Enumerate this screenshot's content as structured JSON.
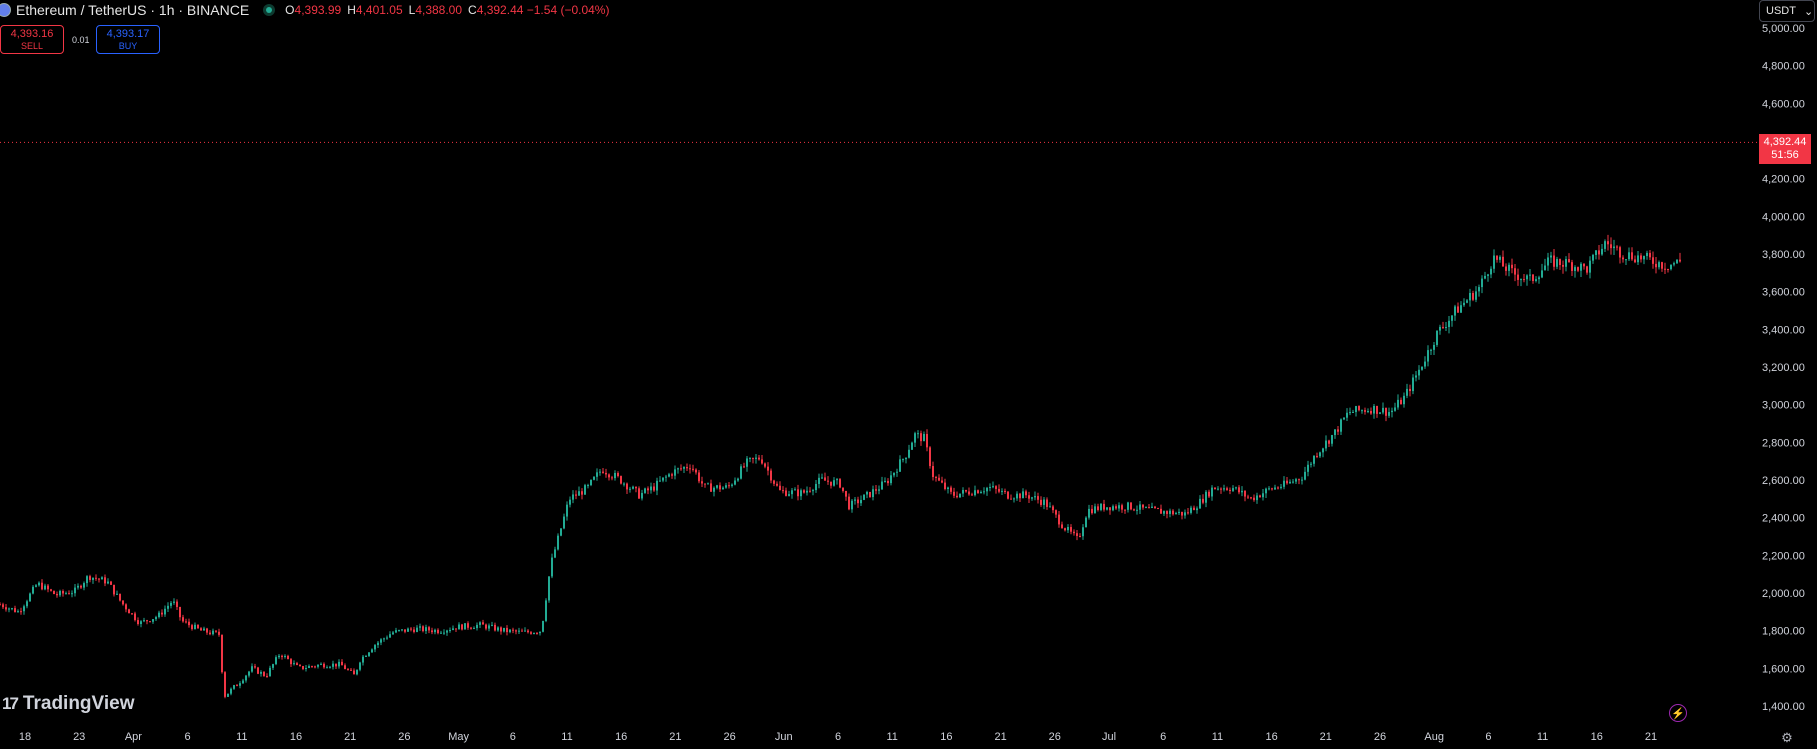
{
  "header": {
    "title": "Ethereum / TetherUS · 1h · BINANCE",
    "ohlc": [
      {
        "k": "O",
        "v": "4,393.99"
      },
      {
        "k": "H",
        "v": "4,401.05"
      },
      {
        "k": "L",
        "v": "4,388.00"
      },
      {
        "k": "C",
        "v": "4,392.44 −1.54 (−0.04%)"
      }
    ]
  },
  "trade": {
    "sell_price": "4,393.16",
    "sell_label": "SELL",
    "buy_price": "4,393.17",
    "buy_label": "BUY",
    "spread": "0.01"
  },
  "currency": {
    "label": "USDT",
    "icon": "chevron-down-icon"
  },
  "last_price": {
    "value": "4,392.44",
    "countdown": "51:56"
  },
  "brand": "TradingView",
  "colors": {
    "up": "#22ab94",
    "down": "#f23645",
    "background": "#000000"
  },
  "chart_data": {
    "type": "candlestick",
    "symbol": "ETHUSDT",
    "interval": "1h",
    "x_ticks": [
      "18",
      "23",
      "Apr",
      "6",
      "11",
      "16",
      "21",
      "26",
      "May",
      "6",
      "11",
      "16",
      "21",
      "26",
      "Jun",
      "6",
      "11",
      "16",
      "21",
      "26",
      "Jul",
      "6",
      "11",
      "16",
      "21",
      "26",
      "Aug",
      "6",
      "11",
      "16",
      "21"
    ],
    "y_ticks": [
      "5,000.00",
      "4,800.00",
      "4,600.00",
      "4,200.00",
      "4,000.00",
      "3,800.00",
      "3,600.00",
      "3,400.00",
      "3,200.00",
      "3,000.00",
      "2,800.00",
      "2,600.00",
      "2,400.00",
      "2,200.00",
      "2,000.00",
      "1,800.00",
      "1,600.00",
      "1,400.00"
    ],
    "ylim": [
      1300,
      5050
    ],
    "current_price": 4392.44,
    "price_path": [
      [
        0,
        1940
      ],
      [
        20,
        1900
      ],
      [
        40,
        2050
      ],
      [
        60,
        1990
      ],
      [
        80,
        2010
      ],
      [
        95,
        2090
      ],
      [
        115,
        2060
      ],
      [
        130,
        1950
      ],
      [
        150,
        1840
      ],
      [
        170,
        1880
      ],
      [
        185,
        1960
      ],
      [
        195,
        1850
      ],
      [
        215,
        1800
      ],
      [
        235,
        1780
      ],
      [
        240,
        1450
      ],
      [
        255,
        1520
      ],
      [
        270,
        1600
      ],
      [
        285,
        1560
      ],
      [
        300,
        1680
      ],
      [
        320,
        1600
      ],
      [
        345,
        1620
      ],
      [
        365,
        1620
      ],
      [
        380,
        1560
      ],
      [
        385,
        1640
      ],
      [
        400,
        1720
      ],
      [
        420,
        1790
      ],
      [
        445,
        1810
      ],
      [
        470,
        1800
      ],
      [
        490,
        1820
      ],
      [
        515,
        1830
      ],
      [
        540,
        1800
      ],
      [
        560,
        1790
      ],
      [
        580,
        1800
      ],
      [
        590,
        2150
      ],
      [
        610,
        2500
      ],
      [
        630,
        2560
      ],
      [
        645,
        2660
      ],
      [
        665,
        2600
      ],
      [
        685,
        2520
      ],
      [
        700,
        2560
      ],
      [
        720,
        2640
      ],
      [
        740,
        2680
      ],
      [
        755,
        2560
      ],
      [
        780,
        2560
      ],
      [
        800,
        2690
      ],
      [
        815,
        2720
      ],
      [
        835,
        2540
      ],
      [
        860,
        2530
      ],
      [
        880,
        2600
      ],
      [
        900,
        2580
      ],
      [
        910,
        2460
      ],
      [
        930,
        2520
      ],
      [
        950,
        2590
      ],
      [
        970,
        2730
      ],
      [
        980,
        2840
      ],
      [
        990,
        2820
      ],
      [
        1000,
        2620
      ],
      [
        1020,
        2520
      ],
      [
        1040,
        2540
      ],
      [
        1060,
        2560
      ],
      [
        1080,
        2520
      ],
      [
        1100,
        2520
      ],
      [
        1120,
        2480
      ],
      [
        1140,
        2350
      ],
      [
        1155,
        2280
      ],
      [
        1165,
        2440
      ],
      [
        1185,
        2460
      ],
      [
        1210,
        2460
      ],
      [
        1230,
        2440
      ],
      [
        1250,
        2430
      ],
      [
        1270,
        2420
      ],
      [
        1285,
        2480
      ],
      [
        1300,
        2560
      ],
      [
        1320,
        2560
      ],
      [
        1340,
        2500
      ],
      [
        1360,
        2550
      ],
      [
        1380,
        2580
      ],
      [
        1395,
        2620
      ],
      [
        1410,
        2740
      ],
      [
        1430,
        2850
      ],
      [
        1445,
        2960
      ],
      [
        1470,
        2980
      ],
      [
        1490,
        2960
      ],
      [
        1505,
        3040
      ],
      [
        1520,
        3180
      ],
      [
        1540,
        3380
      ],
      [
        1560,
        3500
      ],
      [
        1585,
        3620
      ],
      [
        1600,
        3780
      ],
      [
        1620,
        3700
      ],
      [
        1640,
        3660
      ],
      [
        1660,
        3760
      ],
      [
        1680,
        3750
      ],
      [
        1700,
        3720
      ],
      [
        1720,
        3860
      ],
      [
        1740,
        3800
      ],
      [
        1760,
        3780
      ],
      [
        1785,
        3740
      ],
      [
        1800,
        3760
      ]
    ],
    "note": "price path sampled in the chart's own index units; candles generated between samples"
  }
}
